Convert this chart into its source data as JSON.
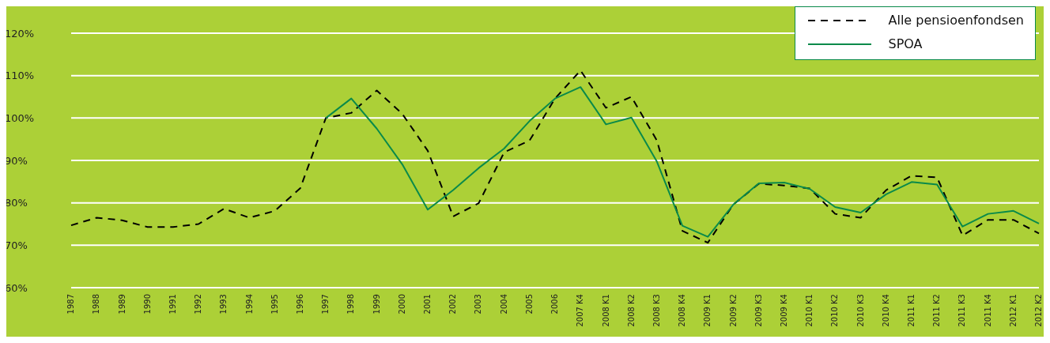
{
  "chart_data": {
    "type": "line",
    "categories": [
      "1987",
      "1988",
      "1989",
      "1990",
      "1991",
      "1992",
      "1993",
      "1994",
      "1995",
      "1996",
      "1997",
      "1998",
      "1999",
      "2000",
      "2001",
      "2002",
      "2003",
      "2004",
      "2005",
      "2006",
      "2007 K4",
      "2008 K1",
      "2008 K2",
      "2008 K3",
      "2008 K4",
      "2009 K1",
      "2009 K2",
      "2009 K3",
      "2009 K4",
      "2010 K1",
      "2010 K2",
      "2010 K3",
      "2010 K4",
      "2011 K1",
      "2011 K2",
      "2011 K3",
      "2011 K4",
      "2012 K1",
      "2012 K2"
    ],
    "series": [
      {
        "name": "Alle pensioenfondsen",
        "color": "#000000",
        "line_style": "dashed",
        "values": [
          74.7,
          76.5,
          75.9,
          74.3,
          74.3,
          75.0,
          78.6,
          76.5,
          78.1,
          83.5,
          100,
          101.2,
          106.5,
          101,
          92.3,
          76.8,
          79.9,
          91.9,
          94.7,
          104.6,
          111.2,
          102.4,
          105.0,
          94.7,
          73.4,
          70.6,
          79.6,
          84.5,
          84.1,
          83.4,
          77.4,
          76.5,
          83.0,
          86.4,
          86.0,
          72.3,
          76.0,
          76.0,
          72.8
        ]
      },
      {
        "name": "SPOA",
        "color": "#0a8a4a",
        "line_style": "solid",
        "values": [
          null,
          null,
          null,
          null,
          null,
          null,
          null,
          null,
          null,
          null,
          100,
          104.6,
          97.5,
          89.1,
          78.4,
          83.0,
          88.2,
          92.8,
          99.3,
          104.6,
          107.3,
          98.5,
          100.1,
          89.7,
          74.6,
          72.0,
          79.6,
          84.6,
          84.8,
          83.3,
          79.0,
          77.7,
          82.0,
          84.9,
          84.3,
          74.4,
          77.4,
          78.1,
          75.1
        ]
      }
    ],
    "ylim": [
      60,
      120
    ],
    "yticks": [
      {
        "value": 60,
        "label": "60%"
      },
      {
        "value": 70,
        "label": "70%"
      },
      {
        "value": 80,
        "label": "80%"
      },
      {
        "value": 90,
        "label": "90%"
      },
      {
        "value": 100,
        "label": "100%"
      },
      {
        "value": 110,
        "label": "110%"
      },
      {
        "value": 120,
        "label": "120%"
      }
    ],
    "grid": "y",
    "legend": "top right",
    "marker": "none"
  }
}
